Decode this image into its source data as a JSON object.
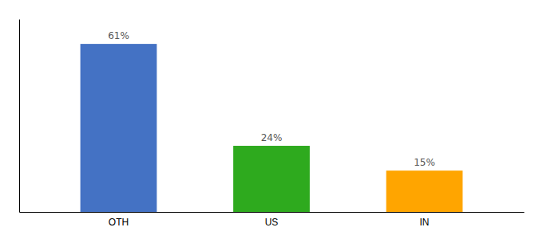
{
  "chart_data": {
    "type": "bar",
    "categories": [
      "OTH",
      "US",
      "IN"
    ],
    "values": [
      61,
      24,
      15
    ],
    "value_labels": [
      "61%",
      "24%",
      "15%"
    ],
    "colors": [
      "#4472C4",
      "#2EAA1E",
      "#FFA500"
    ],
    "ylim": [
      0,
      70
    ],
    "data_labels": true,
    "tick_labels": "x"
  }
}
